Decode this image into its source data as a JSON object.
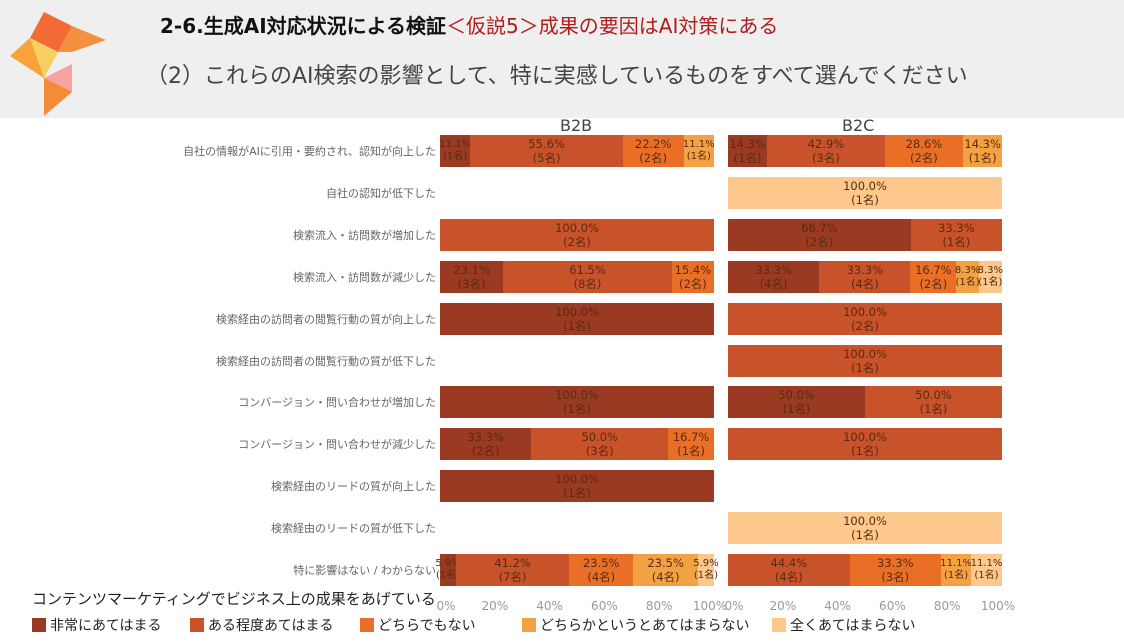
{
  "header": {
    "title_main": "2-6.生成AI対応状況による検証",
    "title_accent": "＜仮説5＞成果の要因はAI対策にある",
    "subtitle": "（2）これらのAI検索の影響として、特に実感しているものをすべて選んでください"
  },
  "chart_data": {
    "type": "bar",
    "stacked": "100%",
    "orientation": "horizontal",
    "panels": [
      "B2B",
      "B2C"
    ],
    "xlabel": "コンテンツマーケティングでビジネス上の成果をあげている",
    "xlim": [
      0,
      100
    ],
    "ticks": [
      "0%",
      "20%",
      "40%",
      "60%",
      "80%",
      "100%"
    ],
    "legend_position": "bottom",
    "legend": [
      "非常にあてはまる",
      "ある程度あてはまる",
      "どちらでもない",
      "どちらかというとあてはまらない",
      "全くあてはまらない"
    ],
    "colors": [
      "#9b3a22",
      "#c8522a",
      "#ea6f26",
      "#f3a243",
      "#fcc88c"
    ],
    "categories": [
      "自社の情報がAIに引用・要約され、認知が向上した",
      "自社の認知が低下した",
      "検索流入・訪問数が増加した",
      "検索流入・訪問数が減少した",
      "検索経由の訪問者の閲覧行動の質が向上した",
      "検索経由の訪問者の閲覧行動の質が低下した",
      "コンバージョン・問い合わせが増加した",
      "コンバージョン・問い合わせが減少した",
      "検索経由のリードの質が向上した",
      "検索経由のリードの質が低下した",
      "特に影響はない / わからない"
    ],
    "rows": [
      {
        "B2B": [
          [
            0,
            11.1,
            "11.1%",
            "(1名)"
          ],
          [
            1,
            55.6,
            "55.6%",
            "(5名)"
          ],
          [
            2,
            22.2,
            "22.2%",
            "(2名)"
          ],
          [
            3,
            11.1,
            "11.1%",
            "(1名)"
          ]
        ],
        "B2C": [
          [
            0,
            14.3,
            "14.3%",
            "(1名)"
          ],
          [
            1,
            42.9,
            "42.9%",
            "(3名)"
          ],
          [
            2,
            28.6,
            "28.6%",
            "(2名)"
          ],
          [
            3,
            14.3,
            "14.3%",
            "(1名)"
          ]
        ]
      },
      {
        "B2B": [],
        "B2C": [
          [
            4,
            100,
            "100.0%",
            "(1名)"
          ]
        ]
      },
      {
        "B2B": [
          [
            1,
            100,
            "100.0%",
            "(2名)"
          ]
        ],
        "B2C": [
          [
            0,
            66.7,
            "66.7%",
            "(2名)"
          ],
          [
            1,
            33.3,
            "33.3%",
            "(1名)"
          ]
        ]
      },
      {
        "B2B": [
          [
            0,
            23.1,
            "23.1%",
            "(3名)"
          ],
          [
            1,
            61.5,
            "61.5%",
            "(8名)"
          ],
          [
            2,
            15.4,
            "15.4%",
            "(2名)"
          ]
        ],
        "B2C": [
          [
            0,
            33.3,
            "33.3%",
            "(4名)"
          ],
          [
            1,
            33.3,
            "33.3%",
            "(4名)"
          ],
          [
            2,
            16.7,
            "16.7%",
            "(2名)"
          ],
          [
            3,
            8.3,
            "8.3%",
            "(1名)"
          ],
          [
            4,
            8.3,
            "8.3%",
            "(1名)"
          ]
        ]
      },
      {
        "B2B": [
          [
            0,
            100,
            "100.0%",
            "(1名)"
          ]
        ],
        "B2C": [
          [
            1,
            100,
            "100.0%",
            "(2名)"
          ]
        ]
      },
      {
        "B2B": [],
        "B2C": [
          [
            1,
            100,
            "100.0%",
            "(1名)"
          ]
        ]
      },
      {
        "B2B": [
          [
            0,
            100,
            "100.0%",
            "(1名)"
          ]
        ],
        "B2C": [
          [
            0,
            50,
            "50.0%",
            "(1名)"
          ],
          [
            1,
            50,
            "50.0%",
            "(1名)"
          ]
        ]
      },
      {
        "B2B": [
          [
            0,
            33.3,
            "33.3%",
            "(2名)"
          ],
          [
            1,
            50,
            "50.0%",
            "(3名)"
          ],
          [
            2,
            16.7,
            "16.7%",
            "(1名)"
          ]
        ],
        "B2C": [
          [
            1,
            100,
            "100.0%",
            "(1名)"
          ]
        ]
      },
      {
        "B2B": [
          [
            0,
            100,
            "100.0%",
            "(1名)"
          ]
        ],
        "B2C": []
      },
      {
        "B2B": [],
        "B2C": [
          [
            4,
            100,
            "100.0%",
            "(1名)"
          ]
        ]
      },
      {
        "B2B": [
          [
            0,
            5.9,
            "5.9%",
            "(1名)"
          ],
          [
            1,
            41.2,
            "41.2%",
            "(7名)"
          ],
          [
            2,
            23.5,
            "23.5%",
            "(4名)"
          ],
          [
            3,
            23.5,
            "23.5%",
            "(4名)"
          ],
          [
            4,
            5.9,
            "5.9%",
            "(1名)"
          ]
        ],
        "B2C": [
          [
            1,
            44.4,
            "44.4%",
            "(4名)"
          ],
          [
            2,
            33.3,
            "33.3%",
            "(3名)"
          ],
          [
            3,
            11.1,
            "11.1%",
            "(1名)"
          ],
          [
            4,
            11.1,
            "11.1%",
            "(1名)"
          ]
        ]
      }
    ]
  }
}
